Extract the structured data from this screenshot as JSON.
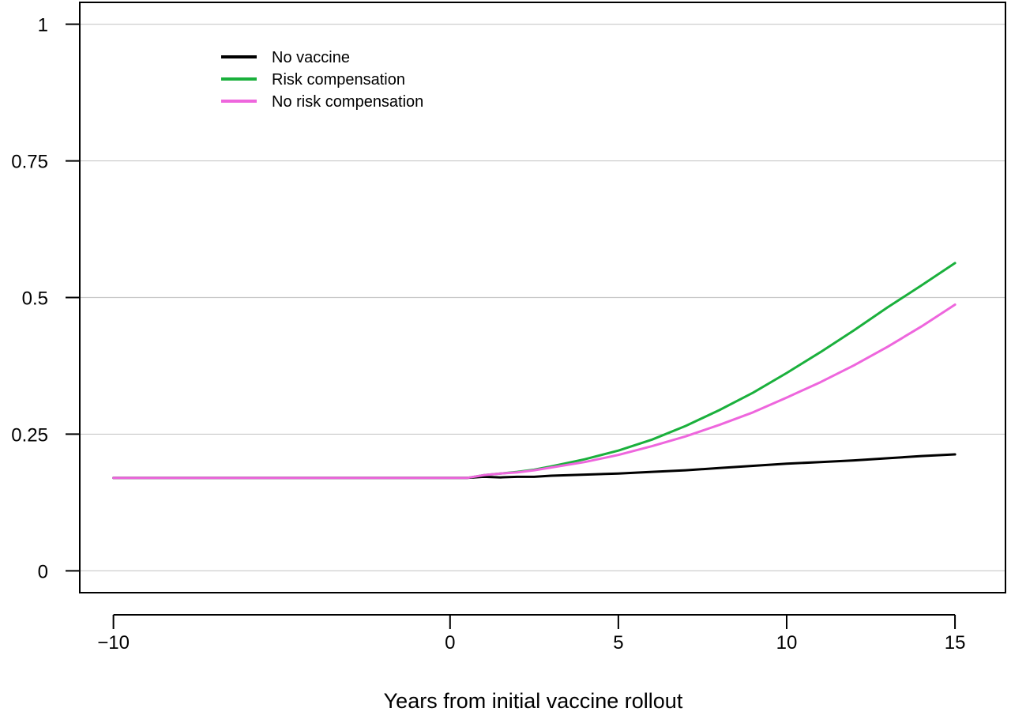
{
  "chart_data": {
    "type": "line",
    "title": "",
    "xlabel": "Years from initial vaccine rollout",
    "ylabel": "",
    "xlim": [
      -11,
      16.5
    ],
    "ylim": [
      -0.04,
      1.04
    ],
    "xticks": [
      -10,
      0,
      5,
      10,
      15
    ],
    "xtick_labels": [
      "−10",
      "0",
      "5",
      "10",
      "15"
    ],
    "yticks": [
      0,
      0.25,
      0.5,
      0.75,
      1
    ],
    "ytick_labels": [
      "0",
      "0.25",
      "0.5",
      "0.75",
      "1"
    ],
    "grid": "horizontal",
    "legend_position": "top-left",
    "series": [
      {
        "name": "No vaccine",
        "color": "#000000",
        "x": [
          -10,
          0,
          0.5,
          1,
          1.5,
          2,
          2.5,
          3,
          4,
          5,
          6,
          7,
          8,
          9,
          10,
          11,
          12,
          13,
          14,
          15
        ],
        "y": [
          0.17,
          0.17,
          0.17,
          0.172,
          0.171,
          0.172,
          0.172,
          0.174,
          0.176,
          0.178,
          0.181,
          0.184,
          0.188,
          0.192,
          0.196,
          0.199,
          0.202,
          0.206,
          0.21,
          0.213
        ]
      },
      {
        "name": "Risk compensation",
        "color": "#1ab03c",
        "x": [
          -10,
          0,
          0.5,
          1,
          1.5,
          2,
          2.5,
          3,
          4,
          5,
          6,
          7,
          8,
          9,
          10,
          11,
          12,
          13,
          14,
          15
        ],
        "y": [
          0.17,
          0.17,
          0.17,
          0.175,
          0.178,
          0.181,
          0.185,
          0.191,
          0.204,
          0.22,
          0.24,
          0.265,
          0.294,
          0.326,
          0.362,
          0.4,
          0.44,
          0.482,
          0.522,
          0.563
        ]
      },
      {
        "name": "No risk compensation",
        "color": "#ee66dd",
        "x": [
          -10,
          0,
          0.5,
          1,
          1.5,
          2,
          2.5,
          3,
          4,
          5,
          6,
          7,
          8,
          9,
          10,
          11,
          12,
          13,
          14,
          15
        ],
        "y": [
          0.17,
          0.17,
          0.17,
          0.175,
          0.178,
          0.18,
          0.184,
          0.189,
          0.199,
          0.212,
          0.228,
          0.246,
          0.267,
          0.29,
          0.317,
          0.345,
          0.376,
          0.41,
          0.447,
          0.487
        ]
      }
    ]
  }
}
